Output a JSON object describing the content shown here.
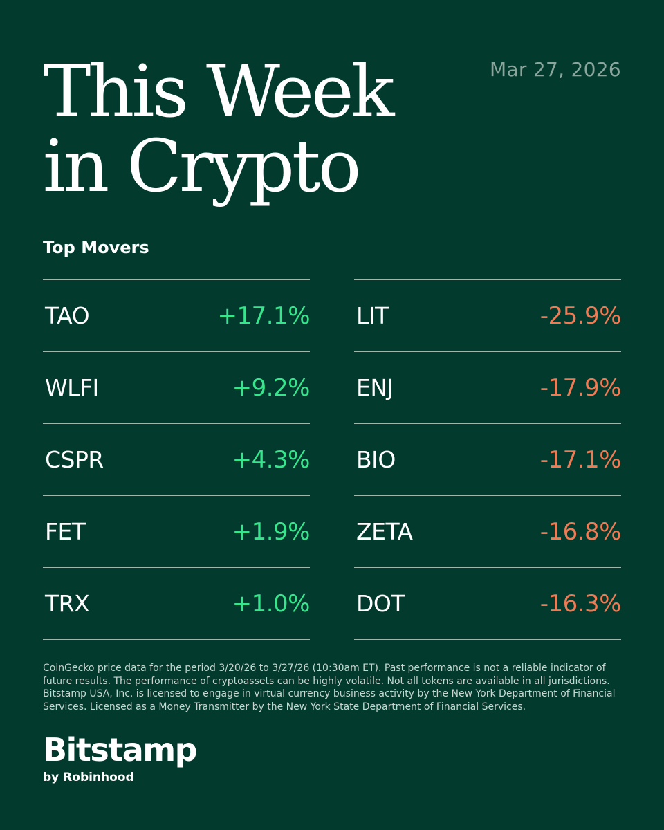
{
  "header": {
    "title_line1": "This Week",
    "title_line2": "in Crypto",
    "date": "Mar 27, 2026"
  },
  "section_label": "Top Movers",
  "gainers": [
    {
      "symbol": "TAO",
      "change": "+17.1%"
    },
    {
      "symbol": "WLFI",
      "change": "+9.2%"
    },
    {
      "symbol": "CSPR",
      "change": "+4.3%"
    },
    {
      "symbol": "FET",
      "change": "+1.9%"
    },
    {
      "symbol": "TRX",
      "change": "+1.0%"
    }
  ],
  "losers": [
    {
      "symbol": "LIT",
      "change": "-25.9%"
    },
    {
      "symbol": "ENJ",
      "change": "-17.9%"
    },
    {
      "symbol": "BIO",
      "change": "-17.1%"
    },
    {
      "symbol": "ZETA",
      "change": "-16.8%"
    },
    {
      "symbol": "DOT",
      "change": "-16.3%"
    }
  ],
  "disclaimer": "CoinGecko price data for the period 3/20/26 to 3/27/26 (10:30am ET). Past performance is not a reliable indicator of future results. The performance of cryptoassets can be highly volatile. Not all tokens are available in all jurisdictions. Bitstamp USA, Inc. is licensed to engage in virtual currency business activity by the New York Department of Financial Services. Licensed as a Money Transmitter by the New York State Department of Financial Services.",
  "logo": {
    "name": "Bitstamp",
    "tagline": "by Robinhood"
  },
  "colors": {
    "background": "#023a2d",
    "gain": "#36e58c",
    "loss": "#f07a53",
    "date": "#8aa69c",
    "divider": "#9fb8ae"
  }
}
